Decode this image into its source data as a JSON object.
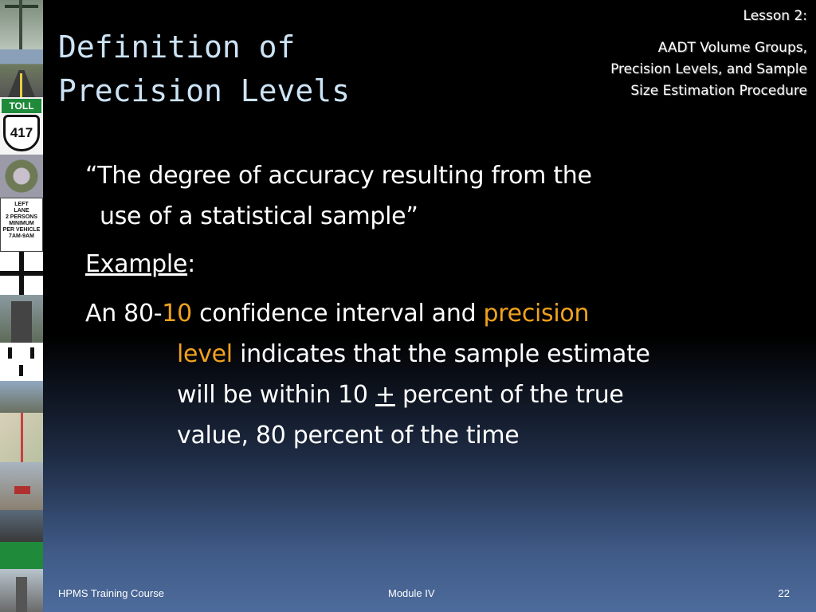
{
  "title": {
    "line1": "Definition of",
    "line2": "Precision Levels"
  },
  "header": {
    "lesson": "Lesson 2:",
    "topic": [
      "AADT Volume Groups,",
      "Precision Levels, and Sample",
      "Size Estimation Procedure"
    ]
  },
  "content": {
    "quote_line1": "“The degree of accuracy resulting from the",
    "quote_line2": "use of a statistical sample”",
    "example_label": "Example",
    "example_colon": ":",
    "body": {
      "p1": "An 80-",
      "p2": "10",
      "p3": " confidence interval and ",
      "p4": "precision",
      "p5": "level",
      "p6": " indicates that the sample estimate",
      "p7": "will be within 10 ",
      "p8": "+",
      "p9": " percent of the true",
      "p10": "value, 80 percent of the time"
    }
  },
  "filmstrip": {
    "toll_sign": "TOLL",
    "route_number": "417",
    "lane_sign": [
      "LEFT",
      "LANE",
      "2 PERSONS",
      "MINIMUM",
      "PER VEHICLE",
      "7AM-9AM"
    ]
  },
  "footer": {
    "left": "HPMS Training Course",
    "center": "Module IV",
    "page": "22"
  },
  "colors": {
    "title": "#cce3f5",
    "highlight": "#f0a21e",
    "text": "#ffffff"
  }
}
